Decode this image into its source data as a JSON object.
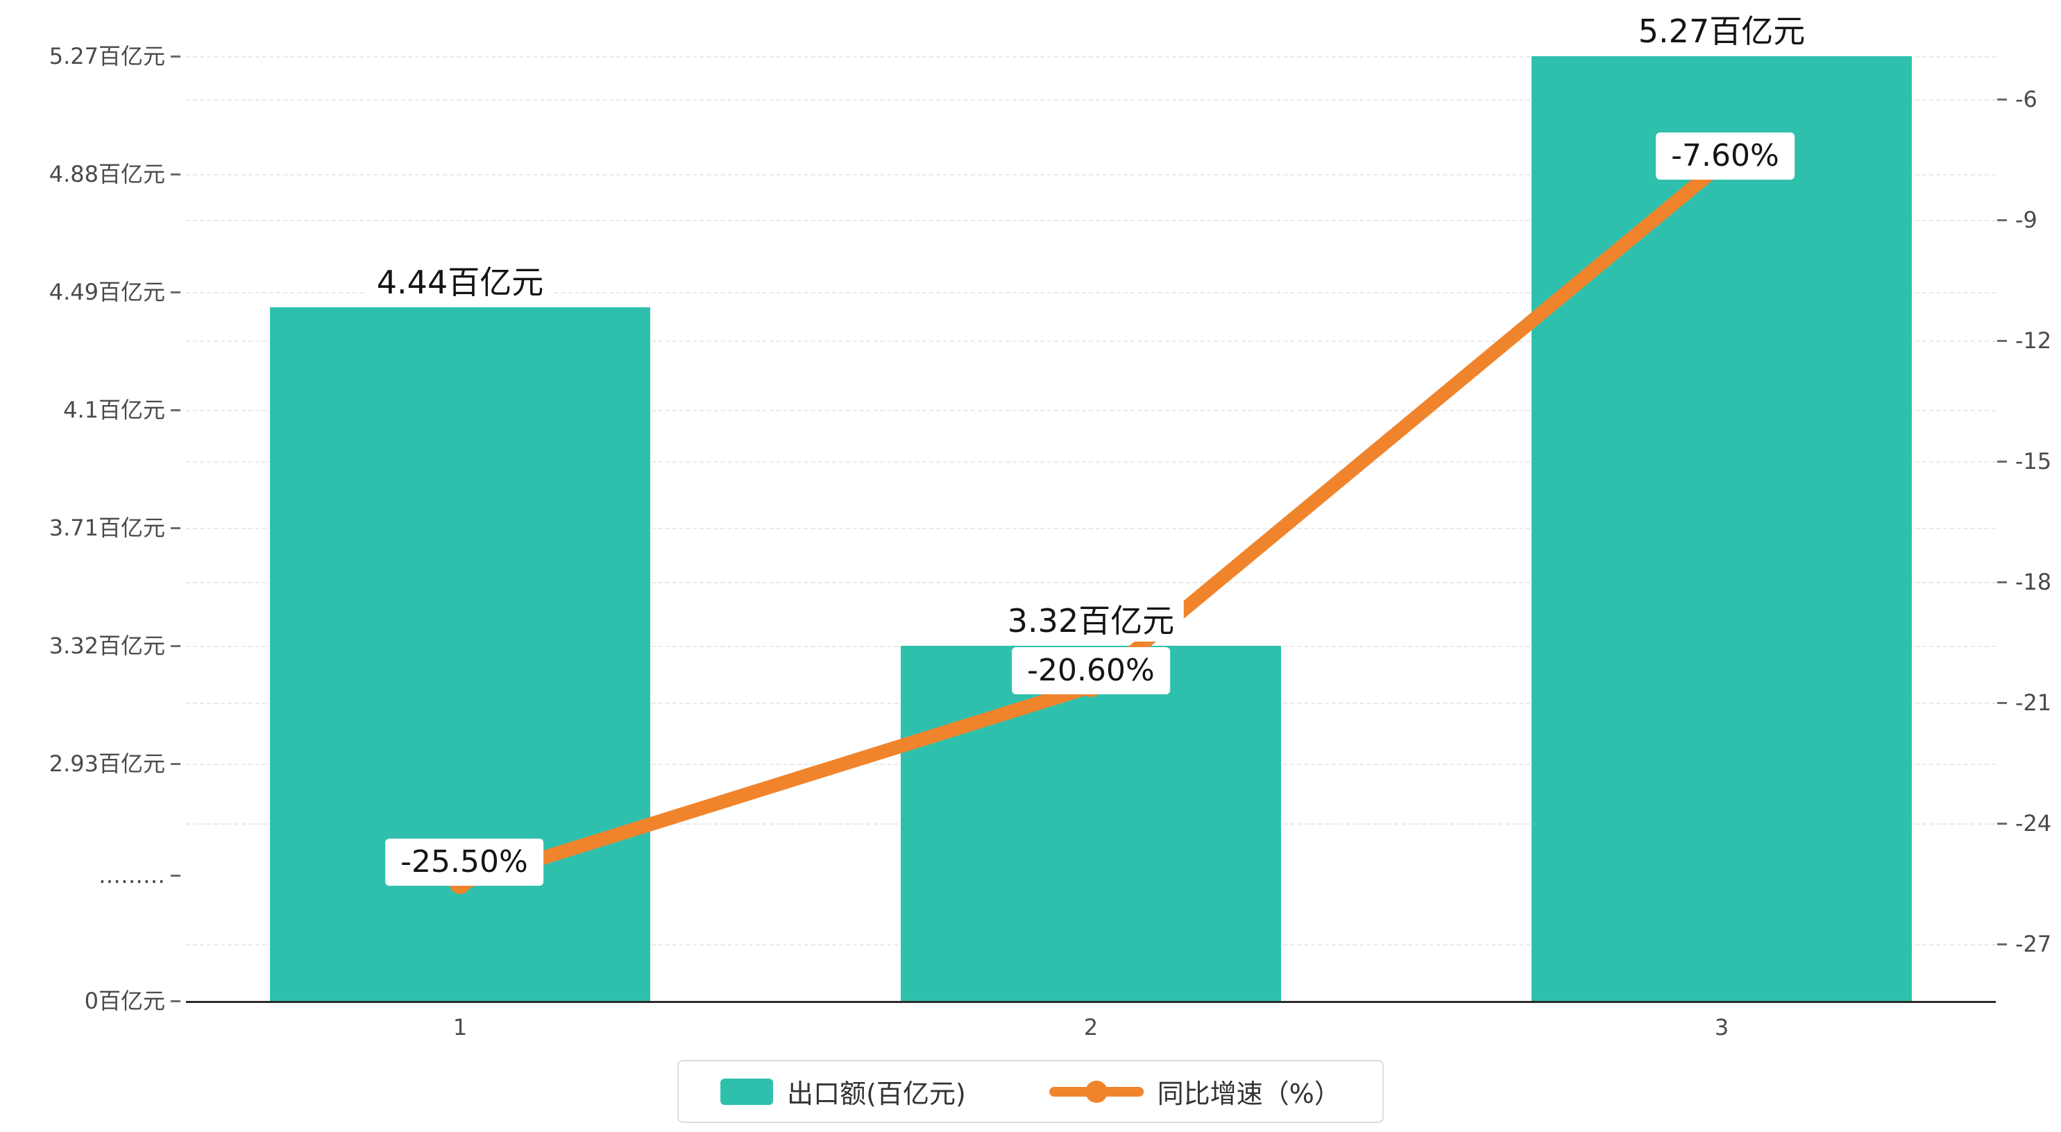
{
  "chart_data": {
    "type": "bar",
    "subtype": "bar-line-combo",
    "categories": [
      "1",
      "2",
      "3"
    ],
    "series": [
      {
        "name": "出口额(百亿元)",
        "type": "bar",
        "axis": "left",
        "color": "#2fc0ad",
        "values": [
          4.44,
          3.32,
          5.27
        ],
        "data_labels": [
          "4.44百亿元",
          "3.32百亿元",
          "5.27百亿元"
        ]
      },
      {
        "name": "同比增速（%）",
        "type": "line",
        "axis": "right",
        "color": "#f0842c",
        "values": [
          -25.5,
          -20.6,
          -7.6
        ],
        "data_labels": [
          "-25.50%",
          "-20.60%",
          "-7.60%"
        ]
      }
    ],
    "left_axis": {
      "unit": "百亿元",
      "has_break": true,
      "ticks": [
        {
          "label": "5.27百亿元",
          "value": 5.27
        },
        {
          "label": "4.88百亿元",
          "value": 4.88
        },
        {
          "label": "4.49百亿元",
          "value": 4.49
        },
        {
          "label": "4.1百亿元",
          "value": 4.1
        },
        {
          "label": "3.71百亿元",
          "value": 3.71
        },
        {
          "label": "3.32百亿元",
          "value": 3.32
        },
        {
          "label": "2.93百亿元",
          "value": 2.93
        },
        {
          "label": "………",
          "value": null
        },
        {
          "label": "0百亿元",
          "value": 0
        }
      ]
    },
    "right_axis": {
      "min": -27,
      "max": -6,
      "ticks": [
        {
          "label": "-6",
          "value": -6
        },
        {
          "label": "-9",
          "value": -9
        },
        {
          "label": "-12",
          "value": -12
        },
        {
          "label": "-15",
          "value": -15
        },
        {
          "label": "-18",
          "value": -18
        },
        {
          "label": "-21",
          "value": -21
        },
        {
          "label": "-24",
          "value": -24
        },
        {
          "label": "-27",
          "value": -27
        }
      ]
    },
    "legend": [
      {
        "label": "出口额(百亿元)",
        "marker": "bar-swatch",
        "color": "#2fc0ad"
      },
      {
        "label": "同比增速（%）",
        "marker": "line-dot",
        "color": "#f0842c"
      }
    ],
    "grid": true,
    "background": "#ffffff"
  }
}
